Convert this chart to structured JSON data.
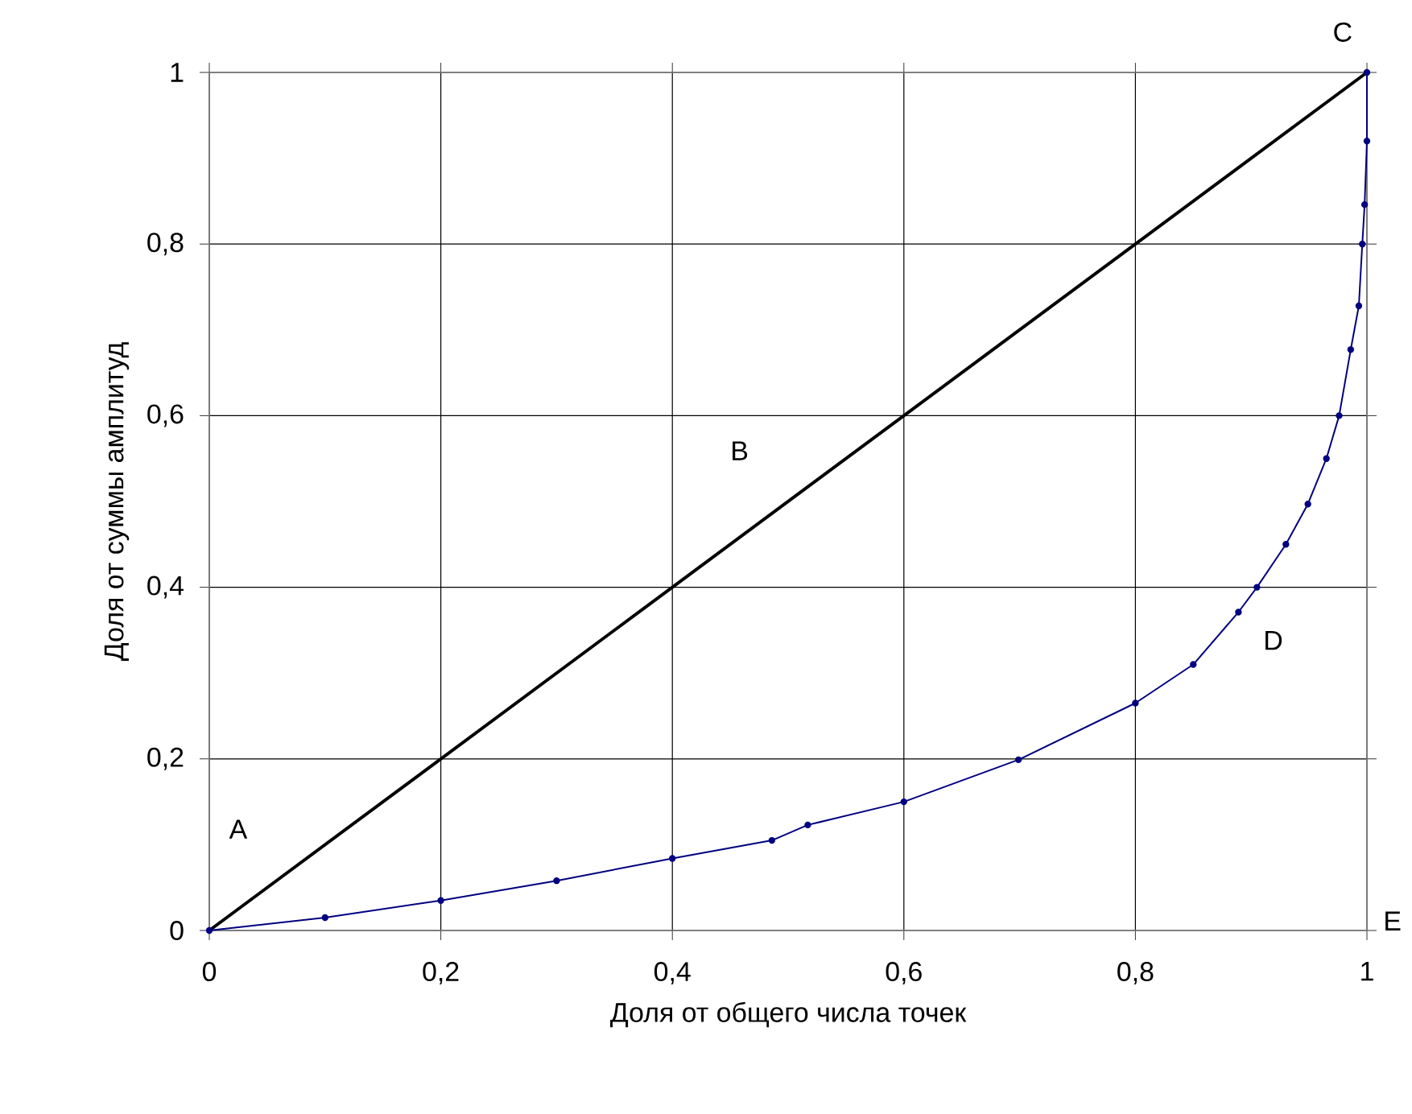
{
  "chart_data": {
    "type": "line",
    "xlabel": "Доля от общего числа точек",
    "ylabel": "Доля от суммы амплитуд",
    "xlim": [
      0,
      1
    ],
    "ylim": [
      0,
      1
    ],
    "xticks": [
      0,
      {
        "value": 0.2,
        "label": "0,2"
      },
      {
        "value": 0.4,
        "label": "0,4"
      },
      {
        "value": 0.6,
        "label": "0,6"
      },
      {
        "value": 0.8,
        "label": "0,8"
      },
      1
    ],
    "yticks": [
      0,
      {
        "value": 0.2,
        "label": "0,2"
      },
      {
        "value": 0.4,
        "label": "0,4"
      },
      {
        "value": 0.6,
        "label": "0,6"
      },
      {
        "value": 0.8,
        "label": "0,8"
      },
      1
    ],
    "grid": true,
    "series": [
      {
        "color": "#000000",
        "marker": "none",
        "x": [
          0,
          1
        ],
        "values": [
          0,
          1
        ]
      },
      {
        "color": "#000080",
        "marker": "circle",
        "x": [
          0,
          0.1,
          0.2,
          0.3,
          0.4,
          0.486,
          0.517,
          0.6,
          0.699,
          0.8,
          0.85,
          0.889,
          0.905,
          0.93,
          0.949,
          0.965,
          0.976,
          0.986,
          0.993,
          0.996,
          0.998,
          1,
          1
        ],
        "values": [
          0,
          0.015,
          0.035,
          0.058,
          0.084,
          0.105,
          0.123,
          0.15,
          0.199,
          0.265,
          0.31,
          0.371,
          0.4,
          0.45,
          0.497,
          0.55,
          0.6,
          0.677,
          0.728,
          0.8,
          0.846,
          0.92,
          1
        ]
      }
    ],
    "annotations": [
      "A",
      "B",
      "C",
      "D",
      "E"
    ]
  }
}
